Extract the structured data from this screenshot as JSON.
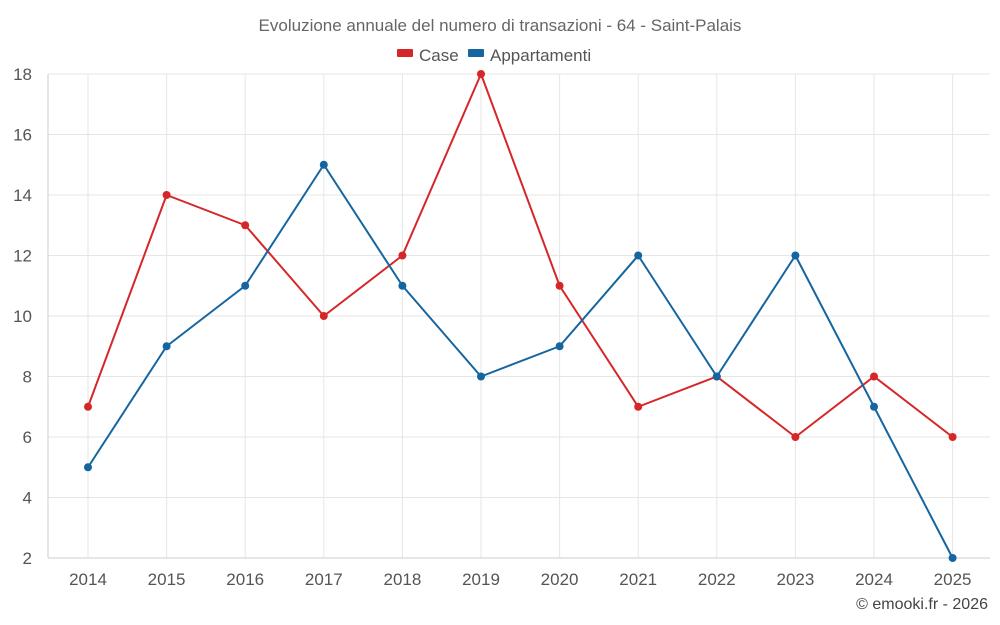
{
  "chart_data": {
    "type": "line",
    "title": "Evoluzione annuale del numero di transazioni - 64 - Saint-Palais",
    "x": [
      "2014",
      "2015",
      "2016",
      "2017",
      "2018",
      "2019",
      "2020",
      "2021",
      "2022",
      "2023",
      "2024",
      "2025"
    ],
    "series": [
      {
        "name": "Case",
        "color": "#d62728",
        "values": [
          7,
          14,
          13,
          10,
          12,
          18,
          11,
          7,
          8,
          6,
          8,
          6
        ]
      },
      {
        "name": "Appartamenti",
        "color": "#1565a0",
        "values": [
          5,
          9,
          11,
          15,
          11,
          8,
          9,
          12,
          8,
          12,
          7,
          2
        ]
      }
    ],
    "ylim": [
      2,
      18
    ],
    "yticks": [
      2,
      4,
      6,
      8,
      10,
      12,
      14,
      16,
      18
    ],
    "xlabel": "",
    "ylabel": "",
    "grid": true,
    "legend": "top-center"
  },
  "credit": "© emooki.fr - 2026"
}
